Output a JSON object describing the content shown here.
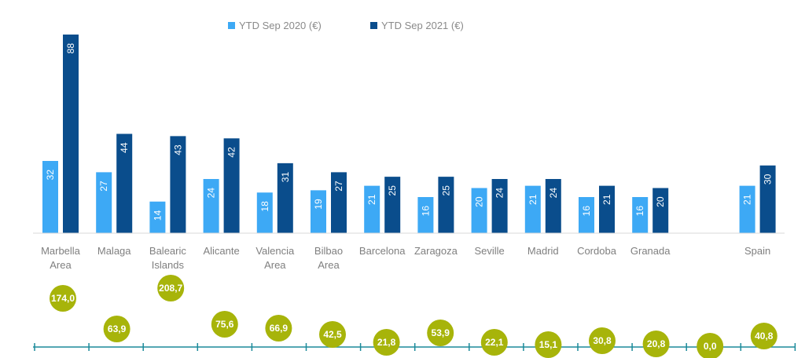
{
  "chart_data": {
    "type": "bar",
    "categories": [
      [
        "Marbella",
        "Area"
      ],
      [
        "Malaga"
      ],
      [
        "Balearic",
        "Islands"
      ],
      [
        "Alicante"
      ],
      [
        "Valencia",
        "Area"
      ],
      [
        "Bilbao",
        "Area"
      ],
      [
        "Barcelona"
      ],
      [
        "Zaragoza"
      ],
      [
        "Seville"
      ],
      [
        "Madrid"
      ],
      [
        "Cordoba"
      ],
      [
        "Granada"
      ],
      [
        ""
      ],
      [
        "Spain"
      ]
    ],
    "series": [
      {
        "name": "YTD Sep 2020 (€)",
        "color": "#3da9f5",
        "values": [
          32,
          27,
          14,
          24,
          18,
          19,
          21,
          16,
          20,
          21,
          16,
          16,
          null,
          21
        ]
      },
      {
        "name": "YTD Sep 2021 (€)",
        "color": "#0a4d8c",
        "values": [
          88,
          44,
          43,
          42,
          31,
          27,
          25,
          25,
          24,
          24,
          21,
          20,
          null,
          30
        ]
      }
    ],
    "ylim": [
      0,
      90
    ],
    "growth": {
      "color": "#a7b40a",
      "labels": [
        "174,0",
        "63,9",
        "208,7",
        "75,6",
        "66,9",
        "42,5",
        "21,8",
        "53,9",
        "22,1",
        "15,1",
        "30,8",
        "20,8",
        "0,0",
        "40,8"
      ],
      "values": [
        174.0,
        63.9,
        208.7,
        75.6,
        66.9,
        42.5,
        21.8,
        53.9,
        22.1,
        15.1,
        30.8,
        20.8,
        0.0,
        40.8
      ]
    },
    "legend_position": "top-center",
    "grid": false
  }
}
